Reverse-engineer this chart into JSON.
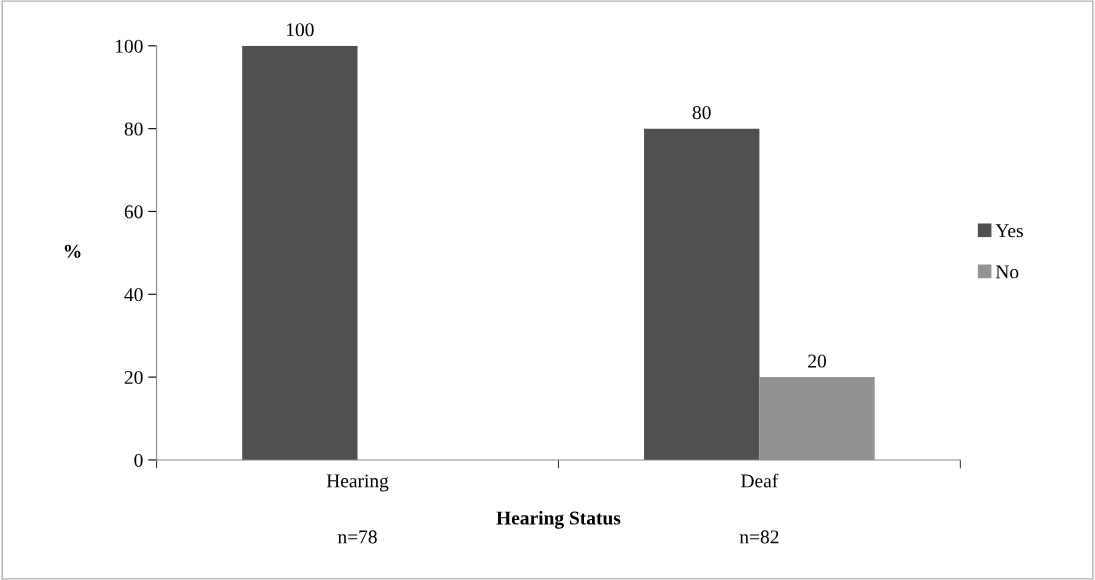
{
  "chart_data": {
    "type": "bar",
    "xlabel": "Hearing Status",
    "ylabel": "%",
    "categories": [
      "Hearing",
      "Deaf"
    ],
    "series": [
      {
        "name": "Yes",
        "color": "#505050",
        "values": [
          100,
          80
        ],
        "value_labels": [
          "100",
          "80"
        ]
      },
      {
        "name": "No",
        "color": "#939393",
        "values": [
          null,
          20
        ],
        "value_labels": [
          null,
          "20"
        ]
      }
    ],
    "ylim": [
      0,
      100
    ],
    "yticks": [
      0,
      20,
      40,
      60,
      80,
      100
    ],
    "grid": false,
    "legend": "right",
    "annotations": [
      "n=78",
      "n=82"
    ]
  }
}
